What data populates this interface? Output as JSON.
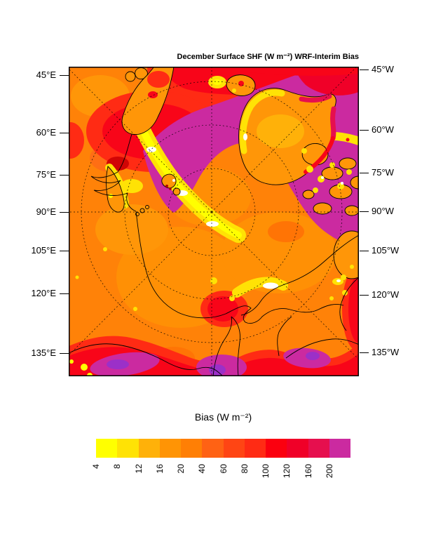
{
  "page": {
    "background": "#FFFFFF"
  },
  "figure": {
    "title": "December Surface SHF (W m⁻²) WRF-Interim Bias"
  },
  "axes": {
    "left_labels": [
      "45°E",
      "60°E",
      "75°E",
      "90°E",
      "105°E",
      "120°E",
      "135°E"
    ],
    "right_labels": [
      "45°W",
      "60°W",
      "75°W",
      "90°W",
      "105°W",
      "120°W",
      "135°W"
    ]
  },
  "colorbar": {
    "title": "Bias (W m⁻²)",
    "tick_labels": [
      "4",
      "8",
      "12",
      "16",
      "20",
      "40",
      "60",
      "80",
      "100",
      "120",
      "160",
      "200"
    ],
    "colors": [
      "#FFFF00",
      "#FFE205",
      "#FFB109",
      "#FF9405",
      "#FF7F05",
      "#FF6214",
      "#FF4514",
      "#FF2B14",
      "#FB000F",
      "#F00028",
      "#E60F4E",
      "#CB2AA0"
    ]
  },
  "chart_data": {
    "type": "heatmap",
    "title": "December Surface SHF (W m⁻²) WRF-Interim Bias",
    "colorbar_title": "Bias (W m⁻²)",
    "projection": "north polar stereographic, Arctic domain",
    "levels_w_m2": [
      4,
      8,
      12,
      16,
      20,
      40,
      60,
      80,
      100,
      120,
      160,
      200
    ],
    "palette": [
      "#FFFF00",
      "#FFE205",
      "#FFB109",
      "#FF9405",
      "#FF7F05",
      "#FF6214",
      "#FF4514",
      "#FF2B14",
      "#FB000F",
      "#F00028",
      "#E60F4E",
      "#CB2AA0"
    ],
    "meridian_labels_left": [
      "45°E",
      "60°E",
      "75°E",
      "90°E",
      "105°E",
      "120°E",
      "135°E"
    ],
    "meridian_labels_right": [
      "45°W",
      "60°W",
      "75°W",
      "90°W",
      "105°W",
      "120°W",
      "135°W"
    ],
    "graticule": {
      "style": "dashed",
      "meridian_interval_deg": 45,
      "latitude_circles": 3
    },
    "regions_estimated": [
      {
        "area": "Central Arctic Ocean",
        "bias_w_m2": "20-40"
      },
      {
        "area": "Siberian and North American land interiors",
        "bias_w_m2": "20-40"
      },
      {
        "area": "Norwegian coastal zone / White Sea",
        "bias_w_m2": "4-12"
      },
      {
        "area": "Barents / Kara Seas",
        "bias_w_m2": "100-160"
      },
      {
        "area": "Greenland Sea and Fram Strait",
        "bias_w_m2": ">200"
      },
      {
        "area": "Baffin Bay / Davis Strait (right of Greenland)",
        "bias_w_m2": ">200"
      },
      {
        "area": "North Atlantic (top edge of domain)",
        "bias_w_m2": "100-200"
      },
      {
        "area": "Greenland interior",
        "bias_w_m2": "16-40"
      },
      {
        "area": "Greenland west/north coastal fringe",
        "bias_w_m2": "4-12"
      },
      {
        "area": "Bering Strait polynya spots and Canadian Archipelago channels",
        "bias_w_m2": "4-8"
      },
      {
        "area": "Sea of Okhotsk / Bering Sea / Gulf of Alaska (bottom edge)",
        "bias_w_m2": "120 to >200"
      }
    ]
  }
}
